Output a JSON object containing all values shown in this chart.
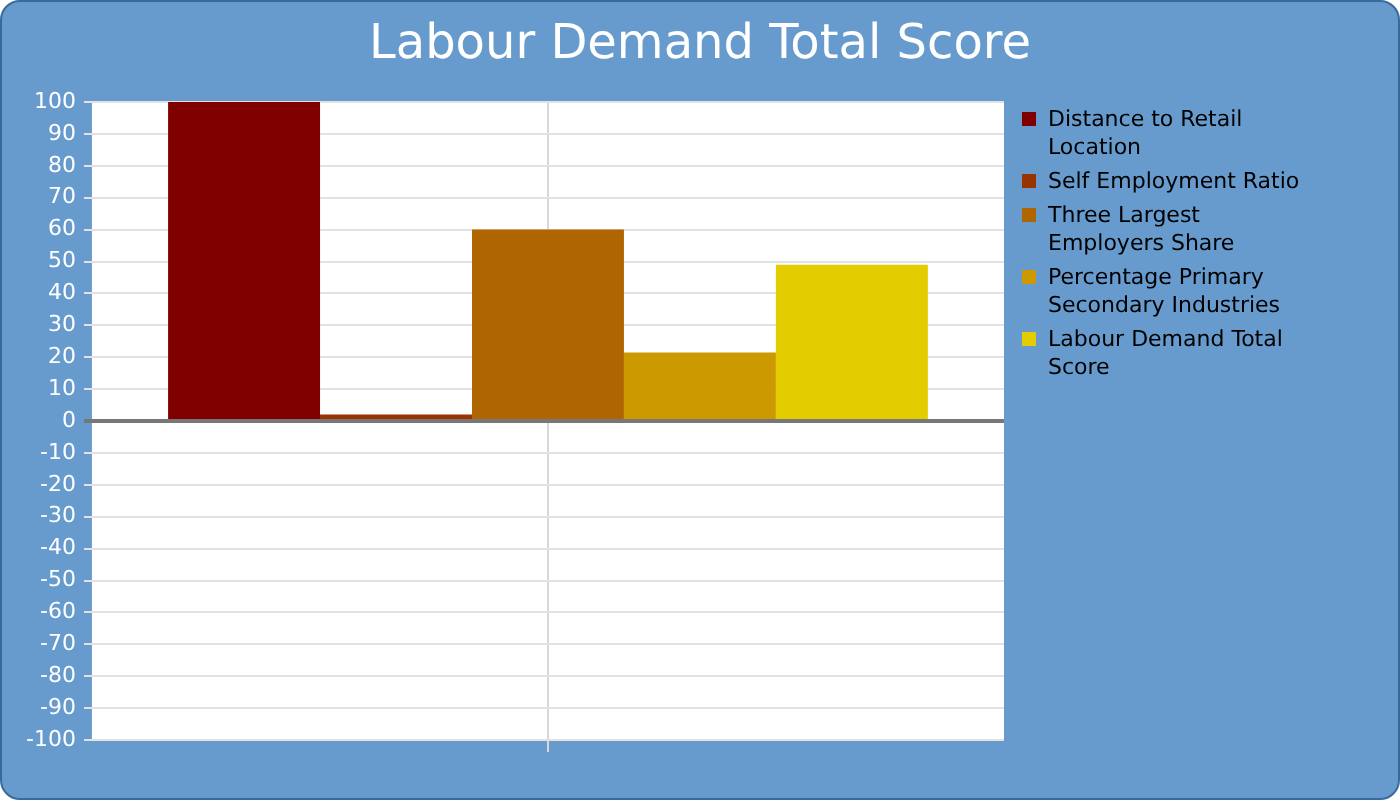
{
  "chart_data": {
    "type": "bar",
    "title": "Labour Demand Total Score",
    "categories": [
      null
    ],
    "series": [
      {
        "name": "Distance to Retail Location",
        "color": "#800000",
        "values": [
          100
        ]
      },
      {
        "name": "Self Employment Ratio",
        "color": "#993300",
        "values": [
          2
        ]
      },
      {
        "name": "Three Largest Employers Share",
        "color": "#b06600",
        "values": [
          60
        ]
      },
      {
        "name": "Percentage Primary Secondary Industries",
        "color": "#cc9900",
        "values": [
          21.5
        ]
      },
      {
        "name": "Labour Demand Total Score",
        "color": "#e3cc00",
        "values": [
          49
        ]
      }
    ],
    "ylim": [
      -100,
      100
    ],
    "yticks": [
      -100,
      -90,
      -80,
      -70,
      -60,
      -50,
      -40,
      -30,
      -20,
      -10,
      0,
      10,
      20,
      30,
      40,
      50,
      60,
      70,
      80,
      90,
      100
    ],
    "grid": true,
    "legend": "right"
  }
}
